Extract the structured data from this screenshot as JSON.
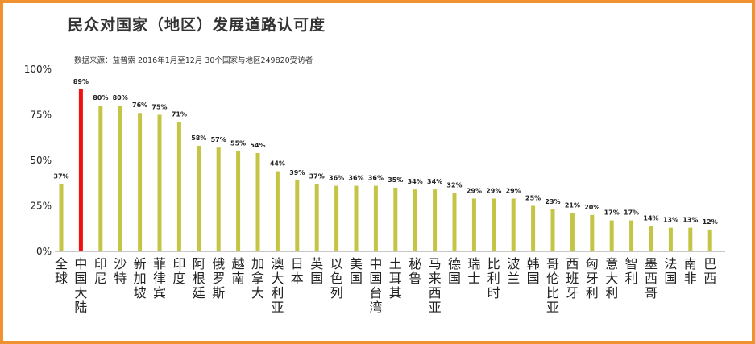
{
  "title": "民众对国家（地区）发展道路认可度",
  "subtitle": "数据来源：益普索 2016年1月至12月 30个国家与地区249820受访者",
  "colors": {
    "bar": "#c5c545",
    "highlight": "#f01010",
    "frame": "#f0922f"
  },
  "chart_data": {
    "type": "bar",
    "title": "民众对国家（地区）发展道路认可度",
    "categories": [
      "全球",
      "中国大陆",
      "印尼",
      "沙特",
      "新加坡",
      "菲律宾",
      "印度",
      "阿根廷",
      "俄罗斯",
      "越南",
      "加拿大",
      "澳大利亚",
      "日本",
      "英国",
      "以色列",
      "美国",
      "中国台湾",
      "土耳其",
      "秘鲁",
      "马来西亚",
      "德国",
      "瑞士",
      "比利时",
      "波兰",
      "韩国",
      "哥伦比亚",
      "西班牙",
      "匈牙利",
      "意大利",
      "智利",
      "墨西哥",
      "法国",
      "南非",
      "巴西"
    ],
    "values": [
      37,
      89,
      80,
      80,
      76,
      75,
      71,
      58,
      57,
      55,
      54,
      44,
      39,
      37,
      36,
      36,
      36,
      35,
      34,
      34,
      32,
      29,
      29,
      29,
      25,
      23,
      21,
      20,
      17,
      17,
      14,
      13,
      13,
      12
    ],
    "value_labels": [
      "37%",
      "89%",
      "80%",
      "80%",
      "76%",
      "75%",
      "71%",
      "58%",
      "57%",
      "55%",
      "54%",
      "44%",
      "39%",
      "37%",
      "36%",
      "36%",
      "36%",
      "35%",
      "34%",
      "34%",
      "32%",
      "29%",
      "29%",
      "29%",
      "25%",
      "23%",
      "21%",
      "20%",
      "17%",
      "17%",
      "14%",
      "13%",
      "13%",
      "12%"
    ],
    "highlight_category": "中国大陆",
    "ylim": [
      0,
      100
    ],
    "yticks": [
      0,
      25,
      50,
      75,
      100
    ],
    "ytick_labels": [
      "0%",
      "25%",
      "50%",
      "75%",
      "100%"
    ],
    "grid": false,
    "xlabel": "",
    "ylabel": ""
  }
}
